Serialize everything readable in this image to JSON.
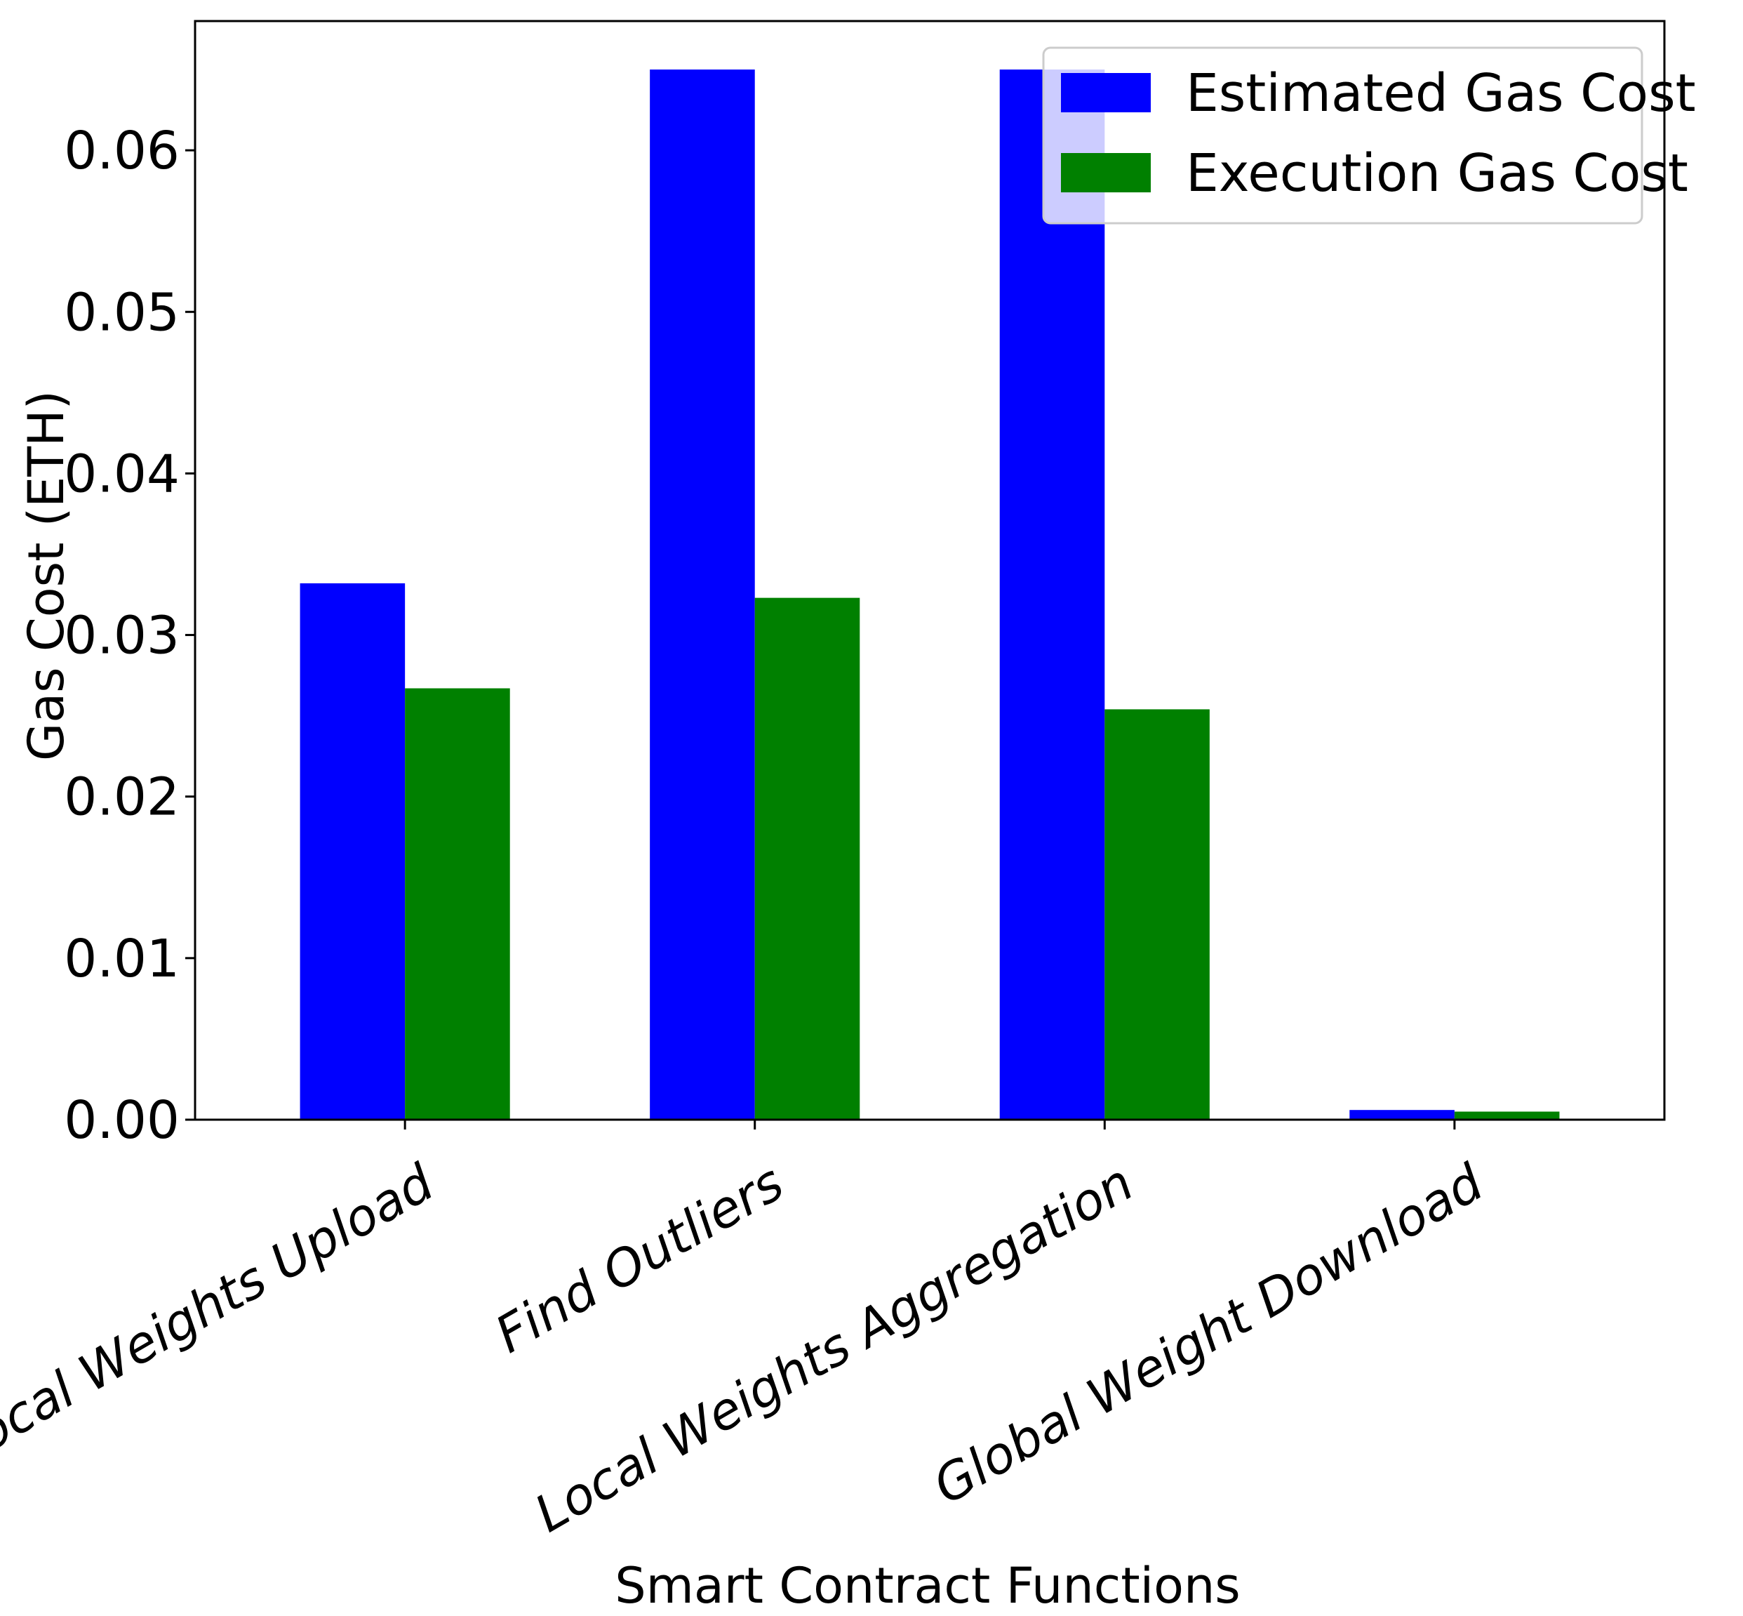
{
  "chart_data": {
    "type": "bar",
    "title": "",
    "xlabel": "Smart Contract Functions",
    "ylabel": "Gas Cost (ETH)",
    "categories": [
      "Local Weights Upload",
      "Find Outliers",
      "Local Weights Aggregation",
      "Global Weight Download"
    ],
    "series": [
      {
        "name": "Estimated Gas Cost",
        "color": "#0000ff",
        "values": [
          0.0332,
          0.065,
          0.065,
          0.0006
        ]
      },
      {
        "name": "Execution Gas Cost",
        "color": "#008000",
        "values": [
          0.0267,
          0.0323,
          0.0254,
          0.0005
        ]
      }
    ],
    "ylim": [
      0,
      0.068
    ],
    "yticks": [
      0.0,
      0.01,
      0.02,
      0.03,
      0.04,
      0.05,
      0.06
    ],
    "ytick_labels": [
      "0.00",
      "0.01",
      "0.02",
      "0.03",
      "0.04",
      "0.05",
      "0.06"
    ],
    "legend_position": "top-right",
    "grid": false
  }
}
